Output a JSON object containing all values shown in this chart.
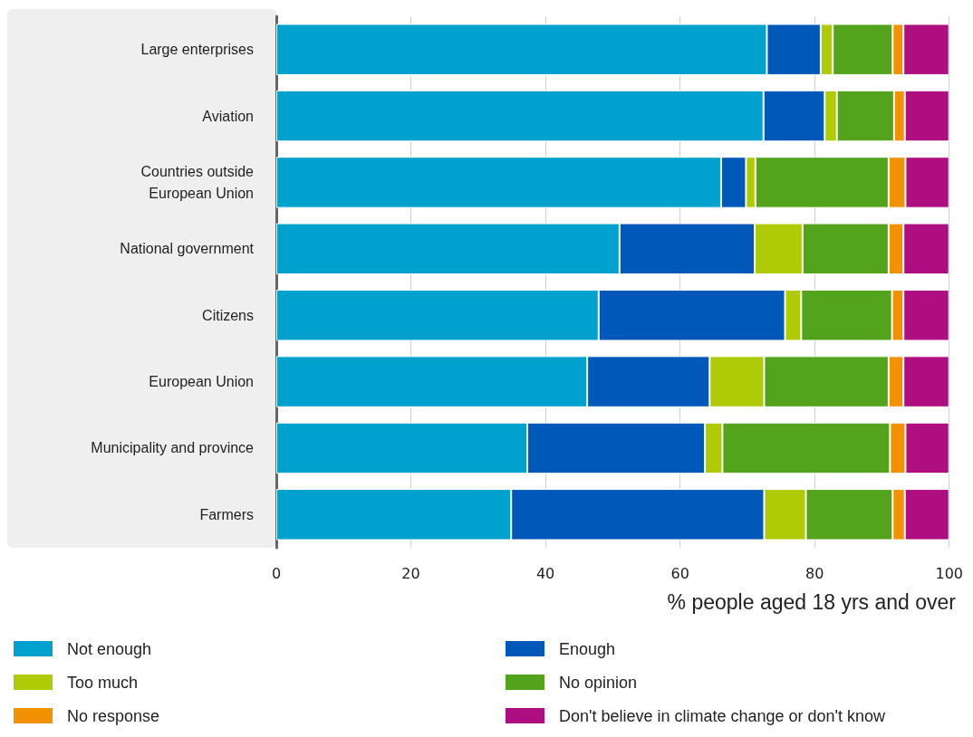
{
  "chart_data": {
    "type": "bar",
    "orientation": "horizontal",
    "stacked": true,
    "xlabel": "% people aged 18 yrs and over",
    "categories": [
      "Large enterprises",
      "Aviation",
      "Countries outside\nEuropean Union",
      "National government",
      "Citizens",
      "European Union",
      "Municipality and province",
      "Farmers"
    ],
    "series": [
      {
        "name": "Not enough",
        "color": "#00a1cd",
        "values": [
          72.9,
          72.4,
          66.1,
          51.0,
          47.9,
          46.2,
          37.3,
          34.9
        ]
      },
      {
        "name": "Enough",
        "color": "#0058b8",
        "values": [
          8.0,
          9.1,
          3.7,
          20.1,
          27.7,
          18.2,
          26.4,
          37.6
        ]
      },
      {
        "name": "Too much",
        "color": "#afcb05",
        "values": [
          1.8,
          1.8,
          1.4,
          7.1,
          2.4,
          8.1,
          2.6,
          6.2
        ]
      },
      {
        "name": "No opinion",
        "color": "#53a31d",
        "values": [
          8.9,
          8.5,
          19.8,
          12.8,
          13.5,
          18.5,
          24.9,
          12.9
        ]
      },
      {
        "name": "No response",
        "color": "#f39200",
        "values": [
          1.6,
          1.6,
          2.5,
          2.2,
          1.7,
          2.2,
          2.3,
          1.8
        ]
      },
      {
        "name": "Don't believe in climate change or don't know",
        "color": "#af0e80",
        "values": [
          6.8,
          6.6,
          6.5,
          6.8,
          6.8,
          6.8,
          6.5,
          6.6
        ]
      }
    ],
    "xlim": [
      0,
      100
    ],
    "xticks": [
      0,
      20,
      40,
      60,
      80,
      100
    ],
    "grid": "x",
    "legend": "bottom"
  }
}
